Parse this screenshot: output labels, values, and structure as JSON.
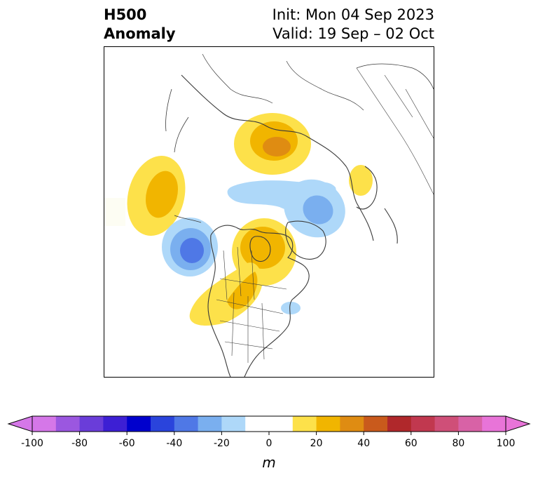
{
  "title": {
    "left_line1": "H500",
    "left_line2": "Anomaly",
    "right_line1": "Init: Mon 04 Sep 2023",
    "right_line2": "Valid: 19 Sep – 02 Oct"
  },
  "colorbar": {
    "unit": "m",
    "min": -100,
    "max": 100,
    "step": 10,
    "extend": "both",
    "ticks": [
      -100,
      -80,
      -60,
      -40,
      -20,
      0,
      20,
      40,
      60,
      80,
      100
    ],
    "tick_labels": [
      "-100",
      "-80",
      "-60",
      "-40",
      "-20",
      "0",
      "20",
      "40",
      "60",
      "80",
      "100"
    ],
    "colors": [
      "#d577e8",
      "#9b57e0",
      "#6a3dd9",
      "#3d1fd4",
      "#0000cd",
      "#2a44dc",
      "#4f78e6",
      "#7aafef",
      "#aed8f9",
      "#ffffff",
      "#ffffff",
      "#fde14a",
      "#f1b500",
      "#df8c12",
      "#c95a1c",
      "#b0282b",
      "#c1384f",
      "#cf4f78",
      "#d862a6",
      "#e874d8"
    ],
    "under_color": "#d577e8",
    "over_color": "#e874d8"
  },
  "map": {
    "projection": "north-polar-stereographic",
    "region": "Northern Hemisphere / North America",
    "anomaly_centers": [
      {
        "sign": "positive",
        "location": "North Pacific",
        "peak": 25
      },
      {
        "sign": "positive",
        "location": "Northern Siberia",
        "peak": 35
      },
      {
        "sign": "positive",
        "location": "Central Canada",
        "peak": 25
      },
      {
        "sign": "positive",
        "location": "Western US / Canada",
        "peak": 15
      },
      {
        "sign": "positive",
        "location": "Western Europe",
        "peak": 15
      },
      {
        "sign": "negative",
        "location": "Gulf of Alaska",
        "peak": -45
      },
      {
        "sign": "negative",
        "location": "Greenland Sea",
        "peak": -25
      },
      {
        "sign": "negative",
        "location": "Arctic Ocean",
        "peak": -15
      },
      {
        "sign": "negative",
        "location": "US East Coast",
        "peak": -15
      }
    ]
  }
}
